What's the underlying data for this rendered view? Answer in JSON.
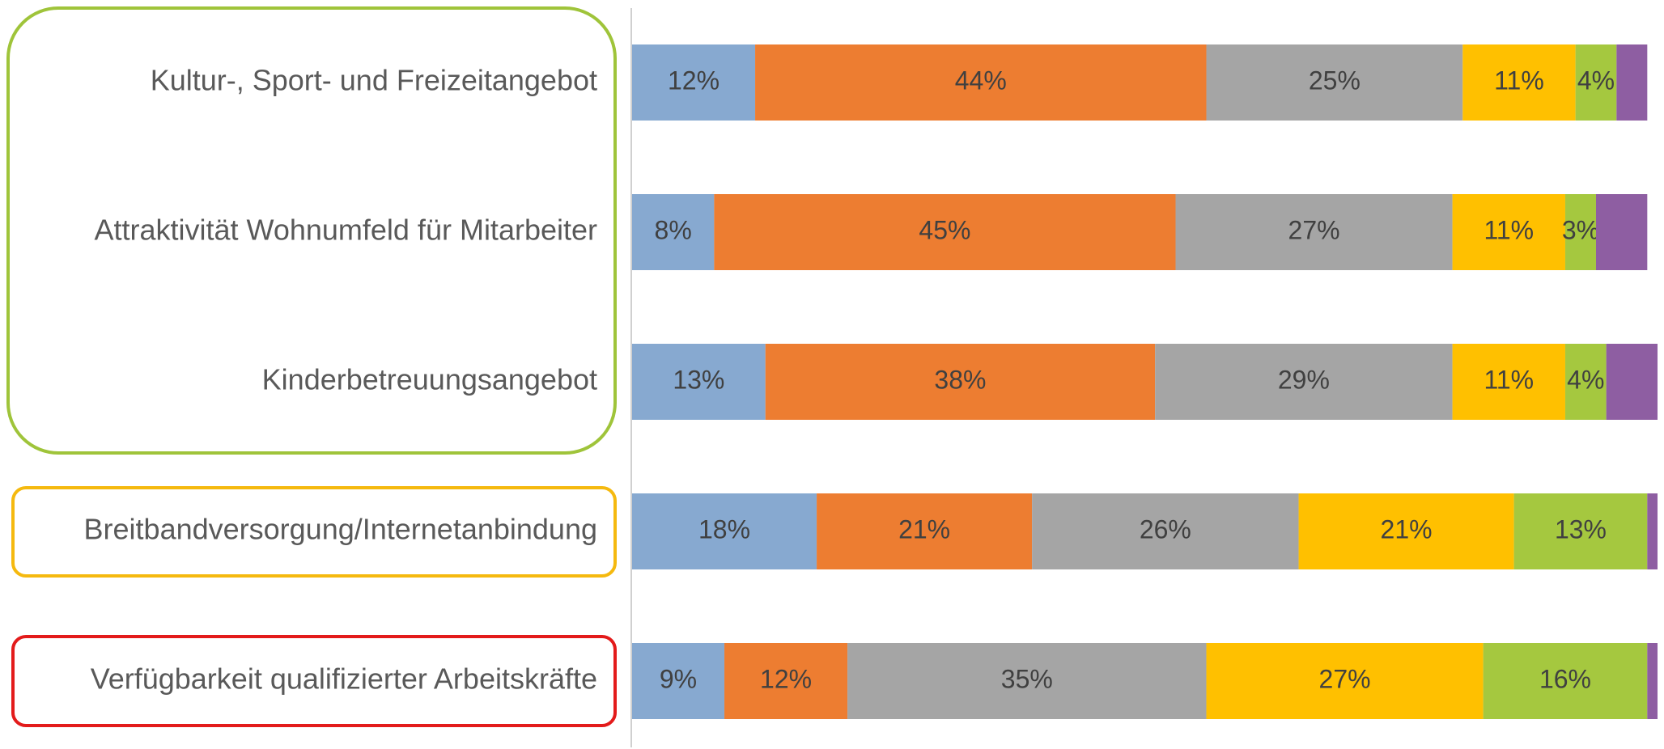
{
  "chart_data": {
    "type": "stacked_bar_horizontal",
    "categories": [
      "Kultur-, Sport- und Freizeitangebot",
      "Attraktivität Wohnumfeld für Mitarbeiter",
      "Kinderbetreuungsangebot",
      "Breitbandversorgung/Internetanbindung",
      "Verfügbarkeit qualifizierter Arbeitskräfte"
    ],
    "xlim": [
      0,
      100
    ],
    "series": [
      {
        "color": "#87a9d0",
        "values": [
          12,
          8,
          13,
          18,
          9
        ],
        "value_labels": [
          "12%",
          "8%",
          "13%",
          "18%",
          "9%"
        ]
      },
      {
        "color": "#ed7d31",
        "values": [
          44,
          45,
          38,
          21,
          12
        ],
        "value_labels": [
          "44%",
          "45%",
          "38%",
          "21%",
          "12%"
        ]
      },
      {
        "color": "#a5a5a5",
        "values": [
          25,
          27,
          29,
          26,
          35
        ],
        "value_labels": [
          "25%",
          "27%",
          "29%",
          "26%",
          "35%"
        ]
      },
      {
        "color": "#ffc000",
        "values": [
          11,
          11,
          11,
          21,
          27
        ],
        "value_labels": [
          "11%",
          "11%",
          "11%",
          "21%",
          "27%"
        ]
      },
      {
        "color": "#a5c83f",
        "values": [
          4,
          3,
          4,
          13,
          16
        ],
        "value_labels": [
          "4%",
          "3%",
          "4%",
          "13%",
          "16%"
        ]
      },
      {
        "color": "#8e5ea2",
        "values": [
          3,
          5,
          5,
          1,
          1
        ]
      }
    ]
  }
}
